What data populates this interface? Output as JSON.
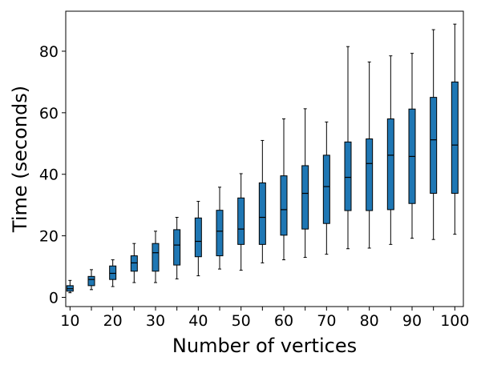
{
  "chart_data": {
    "type": "box",
    "title": "",
    "xlabel": "Number of vertices",
    "ylabel": "Time (seconds)",
    "xlim": [
      9,
      102
    ],
    "ylim": [
      -3,
      93
    ],
    "x_ticks": [
      10,
      20,
      30,
      40,
      50,
      60,
      70,
      80,
      90,
      100
    ],
    "y_ticks": [
      0,
      20,
      40,
      60,
      80
    ],
    "grid": false,
    "box_color": "#1f77b4",
    "boxes": [
      {
        "x": 10,
        "whislo": 1.5,
        "q1": 2.0,
        "med": 2.8,
        "q3": 3.8,
        "whishi": 5.5
      },
      {
        "x": 15,
        "whislo": 2.5,
        "q1": 3.8,
        "med": 5.8,
        "q3": 6.8,
        "whishi": 9.0
      },
      {
        "x": 20,
        "whislo": 3.5,
        "q1": 5.8,
        "med": 7.8,
        "q3": 10.2,
        "whishi": 12.2
      },
      {
        "x": 25,
        "whislo": 4.8,
        "q1": 8.5,
        "med": 11.2,
        "q3": 13.5,
        "whishi": 17.5
      },
      {
        "x": 30,
        "whislo": 4.8,
        "q1": 8.5,
        "med": 14.5,
        "q3": 17.5,
        "whishi": 21.5
      },
      {
        "x": 35,
        "whislo": 6.0,
        "q1": 10.5,
        "med": 17.0,
        "q3": 22.0,
        "whishi": 26.0
      },
      {
        "x": 40,
        "whislo": 7.0,
        "q1": 13.2,
        "med": 18.2,
        "q3": 25.8,
        "whishi": 31.2
      },
      {
        "x": 45,
        "whislo": 9.2,
        "q1": 13.5,
        "med": 21.5,
        "q3": 28.3,
        "whishi": 35.8
      },
      {
        "x": 50,
        "whislo": 8.8,
        "q1": 17.2,
        "med": 22.2,
        "q3": 32.3,
        "whishi": 40.2
      },
      {
        "x": 55,
        "whislo": 11.2,
        "q1": 17.2,
        "med": 26.0,
        "q3": 37.2,
        "whishi": 51.0
      },
      {
        "x": 60,
        "whislo": 12.2,
        "q1": 20.2,
        "med": 28.5,
        "q3": 39.5,
        "whishi": 58.0
      },
      {
        "x": 65,
        "whislo": 13.0,
        "q1": 22.2,
        "med": 33.8,
        "q3": 42.8,
        "whishi": 61.3
      },
      {
        "x": 70,
        "whislo": 14.0,
        "q1": 24.0,
        "med": 36.0,
        "q3": 46.2,
        "whishi": 57.0
      },
      {
        "x": 75,
        "whislo": 15.8,
        "q1": 28.2,
        "med": 39.0,
        "q3": 50.5,
        "whishi": 81.5
      },
      {
        "x": 80,
        "whislo": 16.0,
        "q1": 28.2,
        "med": 43.5,
        "q3": 51.5,
        "whishi": 76.5
      },
      {
        "x": 85,
        "whislo": 17.2,
        "q1": 28.5,
        "med": 46.2,
        "q3": 58.0,
        "whishi": 78.5
      },
      {
        "x": 90,
        "whislo": 19.2,
        "q1": 30.5,
        "med": 45.8,
        "q3": 61.2,
        "whishi": 79.3
      },
      {
        "x": 95,
        "whislo": 18.8,
        "q1": 33.8,
        "med": 51.2,
        "q3": 65.0,
        "whishi": 87.0
      },
      {
        "x": 100,
        "whislo": 20.5,
        "q1": 33.8,
        "med": 49.5,
        "q3": 70.0,
        "whishi": 88.8
      }
    ]
  }
}
